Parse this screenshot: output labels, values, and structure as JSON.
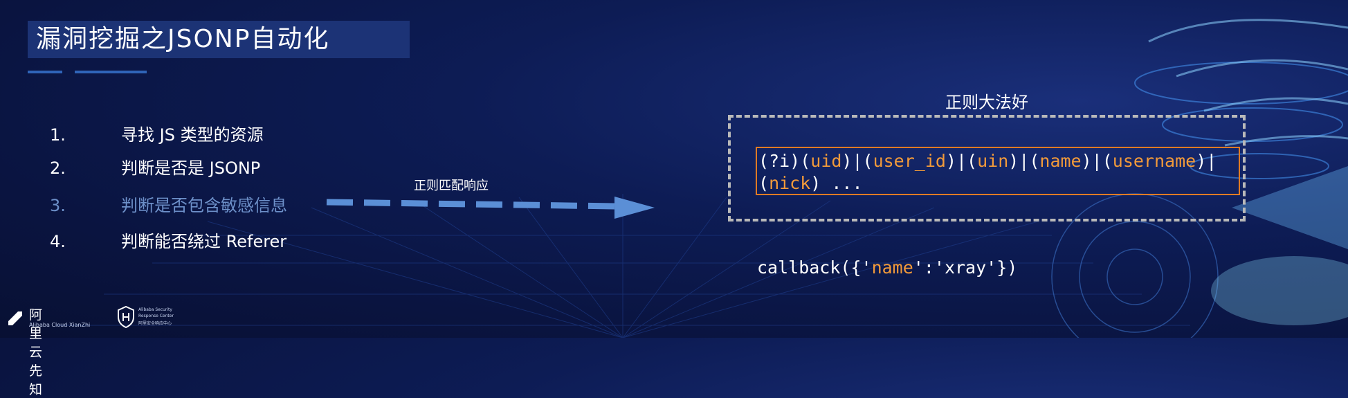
{
  "slide": {
    "title": "漏洞挖掘之JSONP自动化",
    "steps": [
      {
        "num": "1.",
        "text": "寻找 JS 类型的资源"
      },
      {
        "num": "2.",
        "text": "判断是否是 JSONP"
      },
      {
        "num": "3.",
        "text": "判断是否包含敏感信息"
      },
      {
        "num": "4.",
        "text": "判断能否绕过 Referer"
      }
    ],
    "arrow_label": "正则匹配响应",
    "regex_title": "正则大法好",
    "regex": {
      "line1_parts": [
        "(?i)(",
        "uid",
        ")|(",
        "user_id",
        ")|(",
        "uin",
        ")|(",
        "name",
        ")|(",
        "username",
        ")|"
      ],
      "line2_parts": [
        "(",
        "nick",
        ") ..."
      ]
    },
    "callback_parts": [
      "callback({'",
      "name",
      "':'xray'})"
    ]
  },
  "footer": {
    "logo1_cn": "阿里云先知",
    "logo1_en": "Alibaba Cloud XianZhi",
    "logo2_en1": "Alibaba Security",
    "logo2_en2": "Response Center",
    "logo2_cn": "阿里安全响应中心"
  },
  "colors": {
    "background": "#0d1c55",
    "title_box": "#1e3578",
    "highlight": "#f29a3a",
    "dim_step": "#6d90c9",
    "arrow": "#5b8fd6",
    "dashed_border": "#b9b9b9",
    "regex_border": "#e07b24"
  }
}
